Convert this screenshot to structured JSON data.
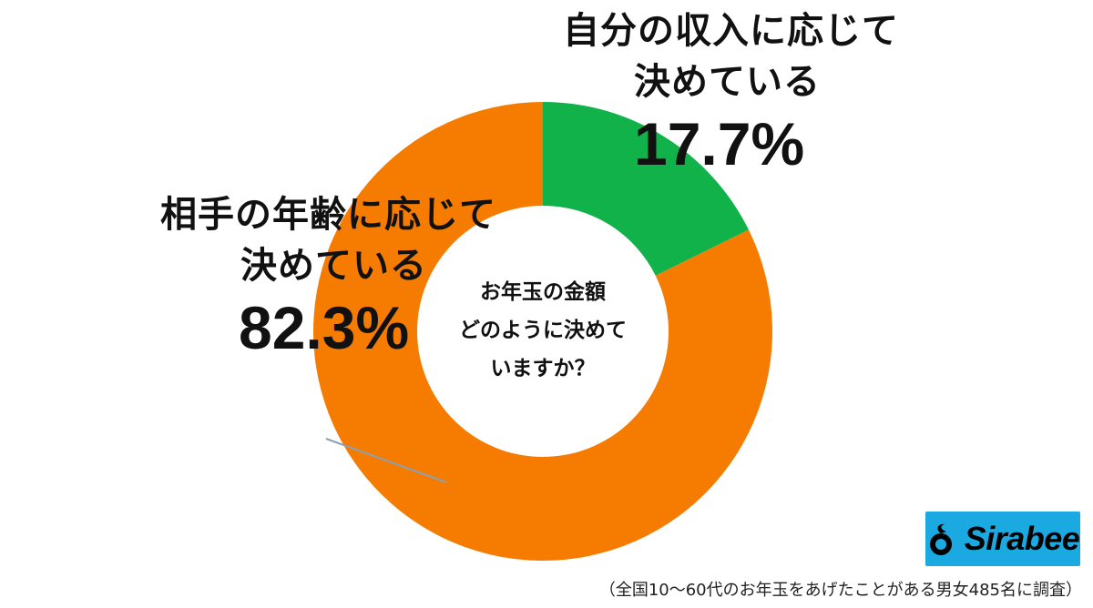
{
  "chart_data": {
    "type": "pie",
    "style": "donut",
    "title": "お年玉の金額\nどのように決めて\nいますか？",
    "title_lines": [
      "お年玉の金額",
      "どのように決めて",
      "いますか？"
    ],
    "slices": [
      {
        "label_lines": [
          "自分の収入に応じて",
          "決めている"
        ],
        "value": 17.7,
        "value_label": "17.7%",
        "color": "#12b24b"
      },
      {
        "label_lines": [
          "相手の年齢に応じて",
          "決めている"
        ],
        "value": 82.3,
        "value_label": "82.3%",
        "color": "#f57c00"
      }
    ]
  },
  "logo": {
    "text": "Sirabee",
    "color": "#1aa9e0"
  },
  "footnote": "（全国10〜60代のお年玉をあげたことがある男女485名に調査）"
}
